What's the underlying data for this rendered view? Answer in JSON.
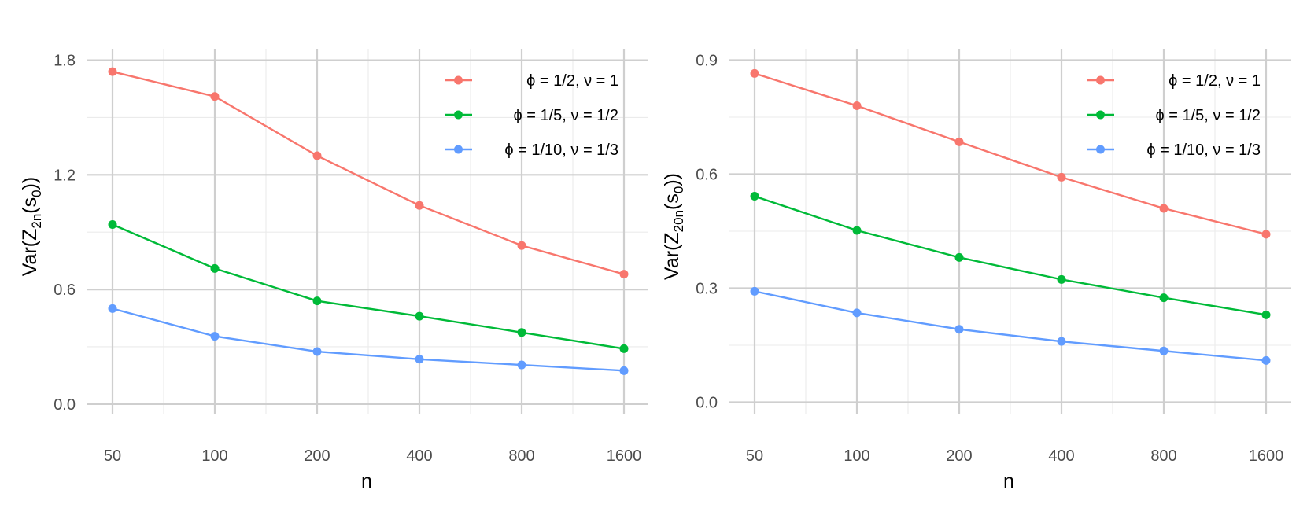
{
  "chart_data": [
    {
      "type": "line",
      "title": "",
      "xlabel": "n",
      "ylabel": {
        "base": "Var(Z",
        "sub1": "2n",
        "mid": "(s",
        "sub2": "0",
        "end": "))"
      },
      "categories": [
        "50",
        "100",
        "200",
        "400",
        "800",
        "1600"
      ],
      "ylim": [
        -0.05,
        1.86
      ],
      "yticks": [
        0.0,
        0.6,
        1.2,
        1.8
      ],
      "ytick_labels": [
        "0.0",
        "0.6",
        "1.2",
        "1.8"
      ],
      "grid": true,
      "legend_position": "top-right",
      "series": [
        {
          "name": "ϕ = 1/2, ν = 1",
          "color": "#F8766D",
          "values": [
            1.74,
            1.61,
            1.3,
            1.04,
            0.83,
            0.68
          ]
        },
        {
          "name": "ϕ = 1/5, ν = 1/2",
          "color": "#00BA38",
          "values": [
            0.94,
            0.71,
            0.54,
            0.46,
            0.375,
            0.29
          ]
        },
        {
          "name": "ϕ = 1/10, ν = 1/3",
          "color": "#619CFF",
          "values": [
            0.5,
            0.355,
            0.275,
            0.235,
            0.205,
            0.175
          ]
        }
      ]
    },
    {
      "type": "line",
      "title": "",
      "xlabel": "n",
      "ylabel": {
        "base": "Var(Z",
        "sub1": "20n",
        "mid": "(s",
        "sub2": "0",
        "end": "))"
      },
      "categories": [
        "50",
        "100",
        "200",
        "400",
        "800",
        "1600"
      ],
      "ylim": [
        -0.03,
        0.93
      ],
      "yticks": [
        0.0,
        0.3,
        0.6,
        0.9
      ],
      "ytick_labels": [
        "0.0",
        "0.3",
        "0.6",
        "0.9"
      ],
      "grid": true,
      "legend_position": "top-right",
      "series": [
        {
          "name": "ϕ = 1/2, ν = 1",
          "color": "#F8766D",
          "values": [
            0.865,
            0.78,
            0.685,
            0.592,
            0.51,
            0.442
          ]
        },
        {
          "name": "ϕ = 1/5, ν = 1/2",
          "color": "#00BA38",
          "values": [
            0.542,
            0.452,
            0.381,
            0.323,
            0.275,
            0.23
          ]
        },
        {
          "name": "ϕ = 1/10, ν = 1/3",
          "color": "#619CFF",
          "values": [
            0.292,
            0.235,
            0.192,
            0.16,
            0.135,
            0.11
          ]
        }
      ]
    }
  ]
}
